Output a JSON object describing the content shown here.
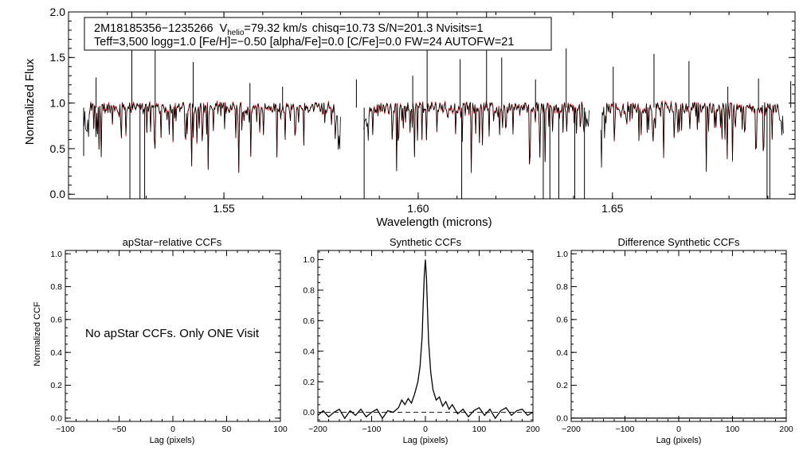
{
  "chart_data": [
    {
      "id": "spectrum",
      "type": "line",
      "title_box": {
        "star_id": "2M18185356−1235266",
        "v_label": "V",
        "v_subscript": "helio",
        "v_value": "=79.32 km/s",
        "stats": "chisq=10.73  S/N=201.3  Nvisits=1",
        "params": "Teff=3,500 logg=1.0 [Fe/H]=−0.50 [alpha/Fe]=0.0 [C/Fe]=0.0 FW=24 AUTOFW=21"
      },
      "xlabel": "Wavelength (microns)",
      "ylabel": "Normalized Flux",
      "xlim": [
        1.51,
        1.697
      ],
      "ylim": [
        -0.05,
        2.0
      ],
      "xticks": [
        "1.55",
        "1.60",
        "1.65"
      ],
      "xtick_values": [
        1.55,
        1.6,
        1.65
      ],
      "yticks": [
        "0.0",
        "0.5",
        "1.0",
        "1.5",
        "2.0"
      ],
      "ytick_values": [
        0.0,
        0.5,
        1.0,
        1.5,
        2.0
      ],
      "detector_chips": [
        [
          1.514,
          1.58
        ],
        [
          1.586,
          1.644
        ],
        [
          1.647,
          1.694
        ]
      ],
      "series": [
        {
          "name": "observed",
          "color": "#000000"
        },
        {
          "name": "model",
          "color": "#ff0000"
        }
      ],
      "observed_emission_spikes": [
        {
          "x": 1.5171,
          "y": 1.28
        },
        {
          "x": 1.5263,
          "y": 2.0
        },
        {
          "x": 1.5323,
          "y": 1.6
        },
        {
          "x": 1.5421,
          "y": 1.45
        },
        {
          "x": 1.5567,
          "y": 1.22
        },
        {
          "x": 1.5651,
          "y": 1.18
        },
        {
          "x": 1.5841,
          "y": 1.26
        },
        {
          "x": 1.5986,
          "y": 1.3
        },
        {
          "x": 1.6023,
          "y": 2.0
        },
        {
          "x": 1.6108,
          "y": 1.48
        },
        {
          "x": 1.6176,
          "y": 2.0
        },
        {
          "x": 1.6215,
          "y": 1.5
        },
        {
          "x": 1.6302,
          "y": 1.26
        },
        {
          "x": 1.6381,
          "y": 1.6
        },
        {
          "x": 1.6502,
          "y": 1.4
        },
        {
          "x": 1.6607,
          "y": 1.54
        },
        {
          "x": 1.6697,
          "y": 1.46
        },
        {
          "x": 1.6797,
          "y": 1.18
        },
        {
          "x": 1.6876,
          "y": 1.27
        },
        {
          "x": 1.6959,
          "y": 1.24
        }
      ],
      "observed_absorption_spikes": [
        {
          "x": 1.5139,
          "y": 0.42
        },
        {
          "x": 1.5258,
          "y": -0.05
        },
        {
          "x": 1.5284,
          "y": -0.05
        },
        {
          "x": 1.5296,
          "y": -0.05
        },
        {
          "x": 1.5861,
          "y": -0.05
        },
        {
          "x": 1.6112,
          "y": -0.05
        },
        {
          "x": 1.6322,
          "y": -0.05
        },
        {
          "x": 1.6339,
          "y": -0.05
        },
        {
          "x": 1.6362,
          "y": -0.05
        },
        {
          "x": 1.6403,
          "y": -0.05
        },
        {
          "x": 1.6428,
          "y": -0.05
        },
        {
          "x": 1.6898,
          "y": -0.05
        },
        {
          "x": 1.6905,
          "y": -0.05
        }
      ]
    },
    {
      "id": "apstar-ccf",
      "type": "line",
      "title": "apStar−relative CCFs",
      "xlabel": "Lag (pixels)",
      "ylabel": "Normalized CCF",
      "xlim": [
        -100,
        100
      ],
      "ylim": [
        -0.02,
        1.02
      ],
      "xticks": [
        "−100",
        "−50",
        "0",
        "50",
        "100"
      ],
      "xtick_values": [
        -100,
        -50,
        0,
        50,
        100
      ],
      "yticks": [
        "0.0",
        "0.2",
        "0.4",
        "0.6",
        "0.8",
        "1.0"
      ],
      "ytick_values": [
        0.0,
        0.2,
        0.4,
        0.6,
        0.8,
        1.0
      ],
      "annotation": "No apStar CCFs.  Only ONE Visit",
      "series": []
    },
    {
      "id": "synthetic-ccf",
      "type": "line",
      "title": "Synthetic CCFs",
      "xlabel": "Lag (pixels)",
      "ylabel": "",
      "xlim": [
        -200,
        200
      ],
      "ylim": [
        -0.06,
        1.06
      ],
      "xticks": [
        "−200",
        "−100",
        "0",
        "100",
        "200"
      ],
      "xtick_values": [
        -200,
        -100,
        0,
        100,
        200
      ],
      "yticks": [
        "0.0",
        "0.2",
        "0.4",
        "0.6",
        "0.8",
        "1.0"
      ],
      "ytick_values": [
        0.0,
        0.2,
        0.4,
        0.6,
        0.8,
        1.0
      ],
      "zero_line": 0.0,
      "series": [
        {
          "name": "CCF",
          "color": "#000000",
          "x": [
            -200,
            -190,
            -180,
            -170,
            -160,
            -150,
            -140,
            -130,
            -120,
            -110,
            -100,
            -90,
            -80,
            -70,
            -60,
            -50,
            -44,
            -38,
            -32,
            -26,
            -20,
            -14,
            -10,
            -6,
            -4,
            -2,
            0,
            2,
            4,
            6,
            10,
            14,
            20,
            26,
            32,
            38,
            44,
            50,
            60,
            70,
            80,
            90,
            100,
            110,
            120,
            130,
            140,
            150,
            160,
            170,
            180,
            190,
            200
          ],
          "values": [
            -0.02,
            0.01,
            -0.03,
            0.0,
            0.02,
            -0.04,
            0.01,
            -0.02,
            0.02,
            -0.03,
            0.0,
            0.02,
            -0.04,
            0.01,
            0.0,
            0.03,
            0.08,
            0.05,
            0.09,
            0.06,
            0.12,
            0.2,
            0.3,
            0.5,
            0.72,
            0.9,
            1.0,
            0.88,
            0.66,
            0.46,
            0.26,
            0.15,
            0.08,
            0.1,
            0.04,
            0.07,
            0.02,
            0.05,
            -0.01,
            0.02,
            -0.03,
            0.01,
            0.03,
            -0.02,
            0.02,
            -0.04,
            0.01,
            0.03,
            -0.02,
            0.01,
            0.02,
            -0.02,
            0.0
          ]
        }
      ]
    },
    {
      "id": "difference-ccf",
      "type": "line",
      "title": "Difference Synthetic CCFs",
      "xlabel": "Lag (pixels)",
      "ylabel": "",
      "xlim": [
        -200,
        200
      ],
      "ylim": [
        -0.02,
        1.02
      ],
      "xticks": [
        "−200",
        "−100",
        "0",
        "100",
        "200"
      ],
      "xtick_values": [
        -200,
        -100,
        0,
        100,
        200
      ],
      "yticks": [
        "0.0",
        "0.2",
        "0.4",
        "0.6",
        "0.8",
        "1.0"
      ],
      "ytick_values": [
        0.0,
        0.2,
        0.4,
        0.6,
        0.8,
        1.0
      ],
      "series": [
        {
          "name": "difference",
          "color": "#000000",
          "x": [
            -200,
            200
          ],
          "values": [
            0.0,
            0.0
          ]
        }
      ]
    }
  ]
}
